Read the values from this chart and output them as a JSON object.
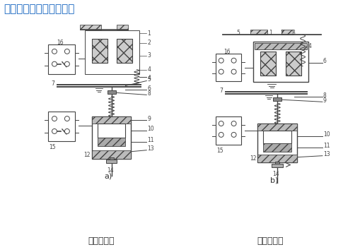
{
  "title_text": "时间继电器结构图如下：",
  "title_color": "#1565C0",
  "title_fontsize": 11,
  "label_a": "a)",
  "label_b": "b)",
  "caption_a": "通电延时型",
  "caption_b": "断电延时型",
  "bg_color": "#FFFFFF",
  "fig_width": 5.1,
  "fig_height": 3.57,
  "dpi": 100,
  "lc": "#444444",
  "lw": 0.7,
  "caption_fontsize": 9,
  "label_fontsize": 5.5
}
